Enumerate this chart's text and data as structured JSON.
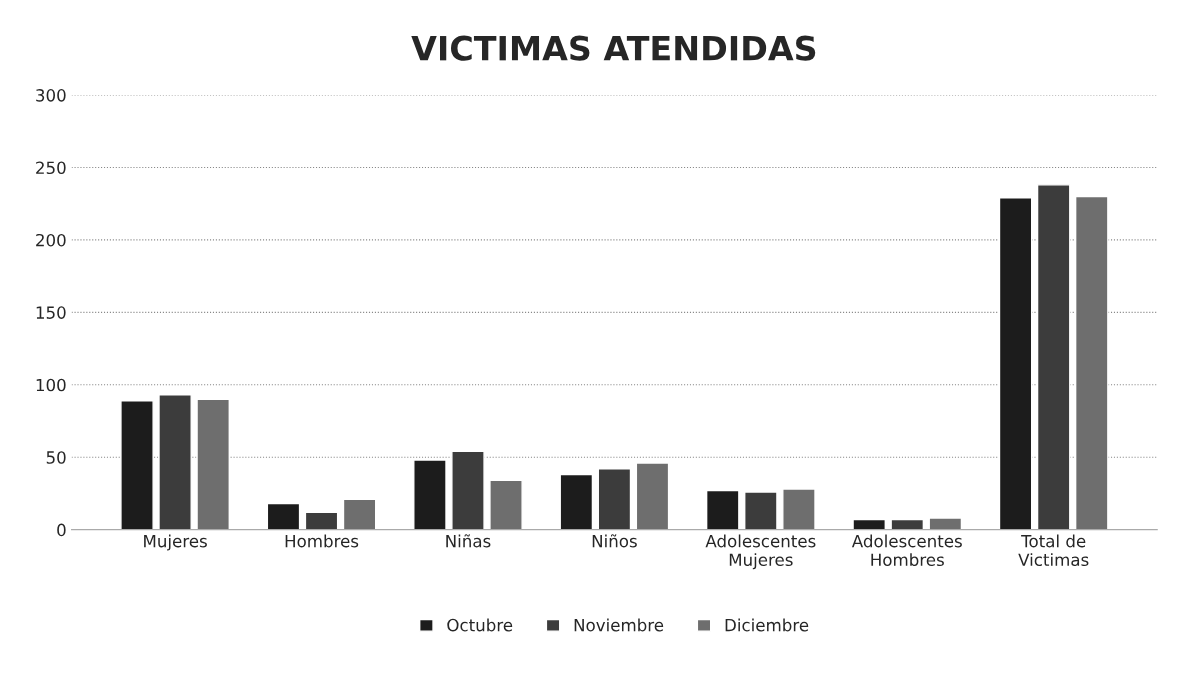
{
  "chart_data": {
    "type": "bar",
    "title": "VICTIMAS ATENDIDAS",
    "categories": [
      "Mujeres",
      "Hombres",
      "Niñas",
      "Niños",
      "Adolescentes\nMujeres",
      "Adolescentes\nHombres",
      "Total de\nVictimas"
    ],
    "series": [
      {
        "name": "Octubre",
        "color": "#1c1c1c",
        "values": [
          89,
          18,
          48,
          38,
          27,
          7,
          229
        ]
      },
      {
        "name": "Noviembre",
        "color": "#3c3c3c",
        "values": [
          93,
          12,
          54,
          42,
          26,
          7,
          238
        ]
      },
      {
        "name": "Diciembre",
        "color": "#6e6e6e",
        "values": [
          90,
          21,
          34,
          46,
          28,
          8,
          230
        ]
      }
    ],
    "ylim": [
      0,
      300
    ],
    "yticks": [
      0,
      50,
      100,
      150,
      200,
      250,
      300
    ],
    "grid": "y",
    "legend": "bottom"
  }
}
